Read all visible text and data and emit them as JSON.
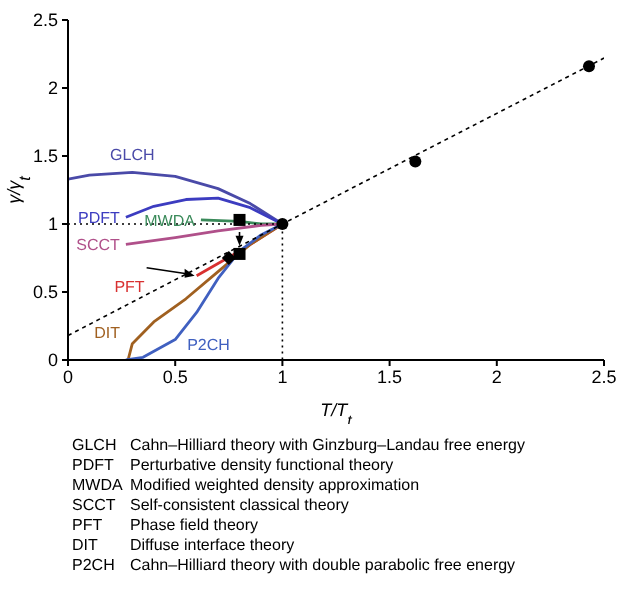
{
  "chart_data": {
    "type": "line",
    "xlabel": "T/T$_{t}$",
    "ylabel": "γ/γ$_{t}$",
    "xlim": [
      0,
      2.5
    ],
    "ylim": [
      0,
      2.5
    ],
    "xticks": [
      0,
      0.5,
      1,
      1.5,
      2,
      2.5
    ],
    "yticks": [
      0,
      0.5,
      1,
      1.5,
      2,
      2.5
    ],
    "grid": false,
    "legend": false,
    "series": [
      {
        "name": "GLCH",
        "color": "#4a4aa8",
        "x": [
          0,
          0.1,
          0.3,
          0.5,
          0.7,
          0.85,
          1
        ],
        "values": [
          1.33,
          1.36,
          1.38,
          1.35,
          1.26,
          1.15,
          1
        ]
      },
      {
        "name": "PDFT",
        "color": "#3c3cc0",
        "x": [
          0.27,
          0.4,
          0.55,
          0.7,
          0.85,
          1
        ],
        "values": [
          1.05,
          1.13,
          1.18,
          1.19,
          1.12,
          1
        ]
      },
      {
        "name": "MWDA",
        "color": "#3a8a5a",
        "x": [
          0.62,
          0.8,
          0.9,
          1
        ],
        "values": [
          1.03,
          1.02,
          1.0,
          1
        ]
      },
      {
        "name": "SCCT",
        "color": "#b0508a",
        "x": [
          0.27,
          0.5,
          0.7,
          0.9,
          1
        ],
        "values": [
          0.85,
          0.9,
          0.95,
          0.99,
          1
        ]
      },
      {
        "name": "PFT",
        "color": "#d83030",
        "x": [
          0.6,
          0.8,
          1
        ],
        "values": [
          0.62,
          0.8,
          1
        ]
      },
      {
        "name": "DIT",
        "color": "#a06020",
        "x": [
          0.28,
          0.3,
          0.4,
          0.55,
          0.7,
          0.85,
          1
        ],
        "values": [
          0,
          0.12,
          0.28,
          0.45,
          0.65,
          0.85,
          1
        ]
      },
      {
        "name": "P2CH",
        "color": "#4060c0",
        "x": [
          0.27,
          0.35,
          0.5,
          0.6,
          0.7,
          0.8,
          0.9,
          1
        ],
        "values": [
          0,
          0.02,
          0.15,
          0.35,
          0.6,
          0.8,
          0.92,
          1
        ]
      },
      {
        "color": "#000000",
        "line_style": "dashed",
        "x": [
          0,
          1,
          2.5
        ],
        "values": [
          0.18,
          1,
          2.22
        ]
      },
      {
        "color": "#000000",
        "line_style": "dotted",
        "x": [
          0,
          1,
          1
        ],
        "values": [
          1,
          1,
          0
        ]
      },
      {
        "type": "scatter",
        "marker": "circle",
        "color": "#000000",
        "x": [
          1,
          1.62,
          2.43
        ],
        "values": [
          1,
          1.46,
          2.16
        ]
      },
      {
        "type": "scatter",
        "marker": "square",
        "color": "#000000",
        "x": [
          0.8,
          0.8
        ],
        "values": [
          1.03,
          0.78
        ]
      },
      {
        "type": "scatter",
        "marker": "diamond",
        "color": "#000000",
        "x": [
          0.75
        ],
        "values": [
          0.75
        ]
      }
    ],
    "annotations": [
      "GLCH Cahn–Hilliard theory with Ginzburg–Landau free energy",
      "PDFT Perturbative density functional theory",
      "MWDA Modified weighted density approximation",
      "SCCT Self-consistent classical theory",
      "PFT Phase field theory",
      "DIT Diffuse interface theory",
      "P2CH Cahn–Hilliard theory with double parabolic free energy"
    ]
  }
}
